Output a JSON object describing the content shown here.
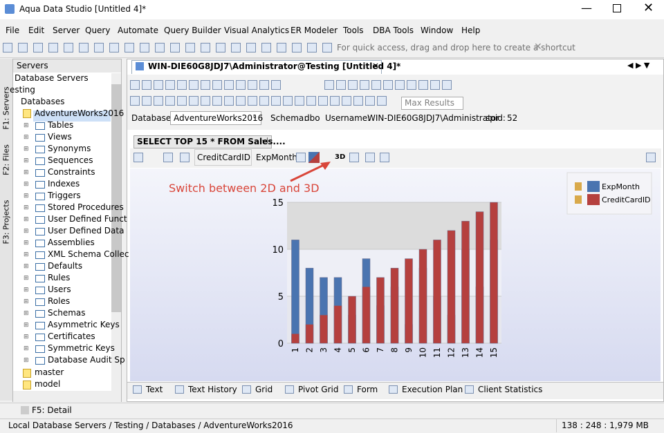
{
  "window": {
    "title": "Aqua Data Studio [Untitled 4]*"
  },
  "menu": [
    "File",
    "Edit",
    "Server",
    "Query",
    "Automate",
    "Query Builder",
    "Visual Analytics",
    "ER Modeler",
    "Tools",
    "DBA Tools",
    "Window",
    "Help"
  ],
  "toolbar_hint": "For quick access, drag and drop here to create a shortcut",
  "side_tabs": [
    "F1: Servers",
    "F2: Files",
    "F3: Projects"
  ],
  "servers_panel": {
    "title": "Servers",
    "tree": [
      "Database Servers",
      "esting",
      "Databases",
      "AdventureWorks2016"
    ],
    "children": [
      "Tables",
      "Views",
      "Synonyms",
      "Sequences",
      "Constraints",
      "Indexes",
      "Triggers",
      "Stored Procedures",
      "User Defined Funct",
      "User Defined Data",
      "Assemblies",
      "XML Schema Collec",
      "Defaults",
      "Rules",
      "Users",
      "Roles",
      "Schemas",
      "Asymmetric Keys",
      "Certificates",
      "Symmetric Keys",
      "Database Audit Sp"
    ],
    "other_databases": [
      "master",
      "model"
    ]
  },
  "editor": {
    "tab": "WIN-DIE60G8JDJ7\\Administrator@Testing [Untitled 4]*",
    "max_results": "Max Results",
    "database_label": "Database:",
    "database": "AdventureWorks2016",
    "schema_label": "Schema:",
    "schema": "dbo",
    "username_label": "Username:",
    "username": "WIN-DIE60G8JDJ7\\Administrator",
    "spid_label": "spid:",
    "spid": "52"
  },
  "results": {
    "tab": "SELECT TOP 15 * FROM Sales....",
    "x_field": "CreditCardID",
    "y_field": "ExpMonth",
    "mode_3d": "3D",
    "bottom_tabs": [
      "Text",
      "Text History",
      "Grid",
      "Pivot Grid",
      "Form",
      "Execution Plan",
      "Client Statistics"
    ]
  },
  "chart_data": {
    "type": "bar",
    "annotation": "Switch between 2D and 3D",
    "categories": [
      "1",
      "2",
      "3",
      "4",
      "5",
      "6",
      "7",
      "8",
      "9",
      "10",
      "11",
      "12",
      "13",
      "14",
      "15"
    ],
    "series": [
      {
        "name": "ExpMonth",
        "color": "#4a74b0",
        "values": [
          11,
          8,
          7,
          7,
          3,
          9,
          4,
          6,
          2,
          8,
          5,
          3,
          10,
          6,
          11
        ]
      },
      {
        "name": "CreditCardID",
        "color": "#b5403e",
        "values": [
          1,
          2,
          3,
          4,
          5,
          6,
          7,
          8,
          9,
          10,
          11,
          12,
          13,
          14,
          15
        ]
      }
    ],
    "ylim": [
      0,
      15
    ],
    "yticks": [
      0,
      5,
      10,
      15
    ],
    "legend": "upper right"
  },
  "detail": "F5: Detail",
  "status": {
    "path": "Local Database Servers / Testing / Databases / AdventureWorks2016",
    "memory": "138 : 248 : 1,979 MB"
  }
}
